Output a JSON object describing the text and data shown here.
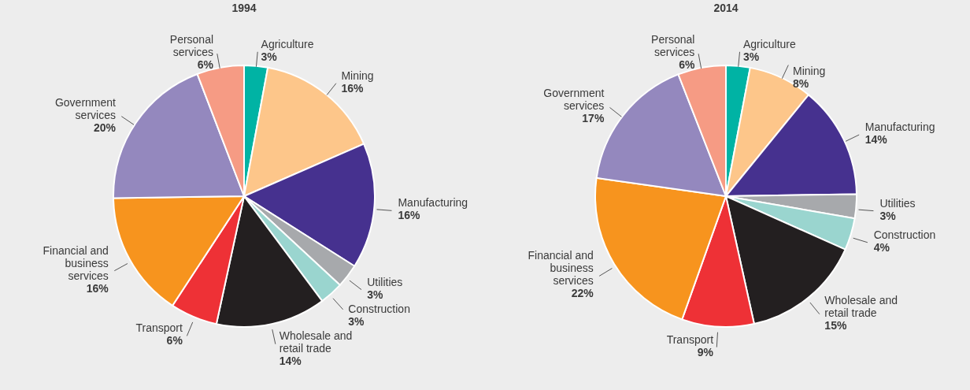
{
  "chart_data": [
    {
      "type": "pie",
      "title": "1994",
      "categories": [
        "Agriculture",
        "Mining",
        "Manufacturing",
        "Utilities",
        "Construction",
        "Wholesale and retail trade",
        "Transport",
        "Financial and business services",
        "Government services",
        "Personal services"
      ],
      "values": [
        3,
        16,
        16,
        3,
        3,
        14,
        6,
        16,
        20,
        6
      ],
      "value_labels": [
        "3%",
        "16%",
        "16%",
        "3%",
        "3%",
        "14%",
        "6%",
        "16%",
        "20%",
        "6%"
      ],
      "colors": [
        "#00b3a4",
        "#fdc68a",
        "#46318f",
        "#a7a9ac",
        "#9ad5cf",
        "#231f20",
        "#ee3136",
        "#f7941e",
        "#9488be",
        "#f69b84"
      ]
    },
    {
      "type": "pie",
      "title": "2014",
      "categories": [
        "Agriculture",
        "Mining",
        "Manufacturing",
        "Utilities",
        "Construction",
        "Wholesale and retail trade",
        "Transport",
        "Financial and business services",
        "Government services",
        "Personal services"
      ],
      "values": [
        3,
        8,
        14,
        3,
        4,
        15,
        9,
        22,
        17,
        6
      ],
      "value_labels": [
        "3%",
        "8%",
        "14%",
        "3%",
        "4%",
        "15%",
        "9%",
        "22%",
        "17%",
        "6%"
      ],
      "colors": [
        "#00b3a4",
        "#fdc68a",
        "#46318f",
        "#a7a9ac",
        "#9ad5cf",
        "#231f20",
        "#ee3136",
        "#f7941e",
        "#9488be",
        "#f69b84"
      ]
    }
  ]
}
